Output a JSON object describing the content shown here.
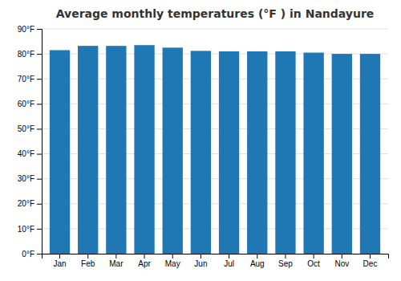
{
  "chart_data": {
    "type": "bar",
    "title": "Average monthly temperatures (°F ) in Nandayure",
    "categories": [
      "Jan",
      "Feb",
      "Mar",
      "Apr",
      "May",
      "Jun",
      "Jul",
      "Aug",
      "Sep",
      "Oct",
      "Nov",
      "Dec"
    ],
    "values": [
      81.5,
      83.2,
      83.2,
      83.5,
      82.5,
      81.2,
      81.0,
      81.0,
      81.0,
      80.5,
      80.0,
      80.0
    ],
    "ylim": [
      0,
      90
    ],
    "yticks": [
      {
        "value": 0,
        "label": "0°F"
      },
      {
        "value": 10,
        "label": "10°F"
      },
      {
        "value": 20,
        "label": "20°F"
      },
      {
        "value": 30,
        "label": "30°F"
      },
      {
        "value": 40,
        "label": "40°F"
      },
      {
        "value": 50,
        "label": "50°F"
      },
      {
        "value": 60,
        "label": "60°F"
      },
      {
        "value": 70,
        "label": "70°F"
      },
      {
        "value": 80,
        "label": "80°F"
      },
      {
        "value": 90,
        "label": "90°F"
      }
    ],
    "grid": true
  }
}
